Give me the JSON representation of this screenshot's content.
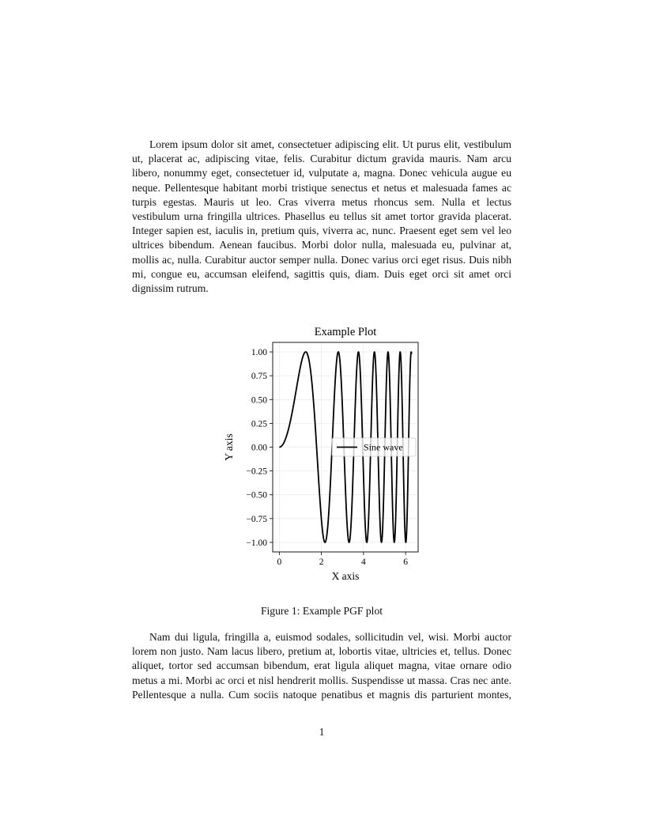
{
  "paragraphs": [
    "Lorem ipsum dolor sit amet, consectetuer adipiscing elit. Ut purus elit, vestibulum ut, placerat ac, adipiscing vitae, felis. Curabitur dictum gravida mauris. Nam arcu libero, nonummy eget, consectetuer id, vulputate a, magna. Donec vehicula augue eu neque. Pellentesque habitant morbi tristique senectus et netus et malesuada fames ac turpis egestas. Mauris ut leo. Cras viverra metus rhoncus sem. Nulla et lectus vestibulum urna fringilla ultrices. Phasellus eu tellus sit amet tortor gravida placerat. Integer sapien est, iaculis in, pretium quis, viverra ac, nunc. Praesent eget sem vel leo ultrices bibendum. Aenean faucibus. Morbi dolor nulla, malesuada eu, pulvinar at, mollis ac, nulla. Curabitur auctor semper nulla. Donec varius orci eget risus. Duis nibh mi, congue eu, accumsan eleifend, sagittis quis, diam. Duis eget orci sit amet orci dignissim rutrum.",
    "Nam dui ligula, fringilla a, euismod sodales, sollicitudin vel, wisi. Morbi auctor lorem non justo. Nam lacus libero, pretium at, lobortis vitae, ultricies et, tellus. Donec aliquet, tortor sed accumsan bibendum, erat ligula aliquet magna, vitae ornare odio metus a mi. Morbi ac orci et nisl hendrerit mollis. Suspendisse ut massa. Cras nec ante. Pellentesque a nulla. Cum sociis natoque penatibus et magnis dis parturient montes, nascetur ridiculus mus."
  ],
  "figure": {
    "caption": "Figure 1: Example PGF plot"
  },
  "page_number": "1",
  "chart_data": {
    "type": "line",
    "title": "Example Plot",
    "xlabel": "X axis",
    "ylabel": "Y axis",
    "xlim": [
      -0.314,
      6.597
    ],
    "ylim": [
      -1.1,
      1.1
    ],
    "xticks": [
      0,
      2,
      4,
      6
    ],
    "xtick_labels": [
      "0",
      "2",
      "4",
      "6"
    ],
    "yticks": [
      1.0,
      0.75,
      0.5,
      0.25,
      0.0,
      -0.25,
      -0.5,
      -0.75,
      -1.0
    ],
    "ytick_labels": [
      "1.00",
      "0.75",
      "0.50",
      "0.25",
      "0.00",
      "−0.25",
      "−0.50",
      "−0.75",
      "−1.00"
    ],
    "grid": true,
    "legend_position": "center-right",
    "series": [
      {
        "name": "Sine wave",
        "function": "sin(x^2)",
        "x_range": [
          0,
          6.2832
        ],
        "samples": 1000,
        "color": "#000000"
      }
    ]
  }
}
